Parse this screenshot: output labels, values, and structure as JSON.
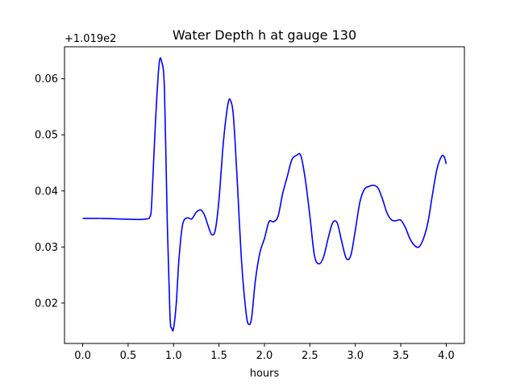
{
  "chart_data": {
    "type": "line",
    "title": "Water Depth h at gauge 130",
    "xlabel": "hours",
    "ylabel": "",
    "y_offset_label": "+1.019e2",
    "xlim": [
      -0.2,
      4.2
    ],
    "ylim": [
      0.0128,
      0.0657
    ],
    "x_ticks": [
      0.0,
      0.5,
      1.0,
      1.5,
      2.0,
      2.5,
      3.0,
      3.5,
      4.0
    ],
    "x_tick_labels": [
      "0.0",
      "0.5",
      "1.0",
      "1.5",
      "2.0",
      "2.5",
      "3.0",
      "3.5",
      "4.0"
    ],
    "y_ticks": [
      0.02,
      0.03,
      0.04,
      0.05,
      0.06
    ],
    "y_tick_labels": [
      "0.02",
      "0.03",
      "0.04",
      "0.05",
      "0.06"
    ],
    "grid": false,
    "series": [
      {
        "color": "#0000ff",
        "x": [
          0.0,
          0.2,
          0.4,
          0.6,
          0.7,
          0.74,
          0.76,
          0.8,
          0.84,
          0.87,
          0.9,
          0.93,
          0.96,
          0.98,
          1.0,
          1.03,
          1.06,
          1.1,
          1.15,
          1.2,
          1.25,
          1.3,
          1.34,
          1.38,
          1.42,
          1.46,
          1.5,
          1.55,
          1.6,
          1.63,
          1.66,
          1.7,
          1.75,
          1.8,
          1.83,
          1.86,
          1.9,
          1.95,
          2.0,
          2.05,
          2.1,
          2.15,
          2.2,
          2.25,
          2.3,
          2.35,
          2.4,
          2.45,
          2.5,
          2.55,
          2.6,
          2.65,
          2.7,
          2.75,
          2.8,
          2.85,
          2.9,
          2.95,
          3.0,
          3.05,
          3.1,
          3.15,
          3.2,
          3.25,
          3.3,
          3.35,
          3.4,
          3.45,
          3.5,
          3.55,
          3.6,
          3.65,
          3.7,
          3.75,
          3.8,
          3.85,
          3.9,
          3.95,
          3.98,
          4.0
        ],
        "y": [
          0.0351,
          0.0351,
          0.035,
          0.0349,
          0.035,
          0.0354,
          0.038,
          0.052,
          0.0625,
          0.063,
          0.058,
          0.035,
          0.018,
          0.0155,
          0.0155,
          0.02,
          0.028,
          0.034,
          0.0352,
          0.035,
          0.0362,
          0.0366,
          0.0357,
          0.0338,
          0.0322,
          0.0331,
          0.0385,
          0.049,
          0.0556,
          0.056,
          0.053,
          0.042,
          0.027,
          0.018,
          0.0162,
          0.0175,
          0.024,
          0.029,
          0.0315,
          0.0345,
          0.0345,
          0.0355,
          0.0395,
          0.0425,
          0.0455,
          0.0463,
          0.0463,
          0.042,
          0.0355,
          0.0285,
          0.027,
          0.0282,
          0.0315,
          0.0343,
          0.0343,
          0.031,
          0.028,
          0.0285,
          0.033,
          0.038,
          0.0403,
          0.0408,
          0.041,
          0.0405,
          0.0385,
          0.036,
          0.0348,
          0.0347,
          0.0348,
          0.0335,
          0.0315,
          0.0303,
          0.03,
          0.0315,
          0.0345,
          0.0395,
          0.044,
          0.0462,
          0.046,
          0.0448
        ]
      }
    ]
  }
}
